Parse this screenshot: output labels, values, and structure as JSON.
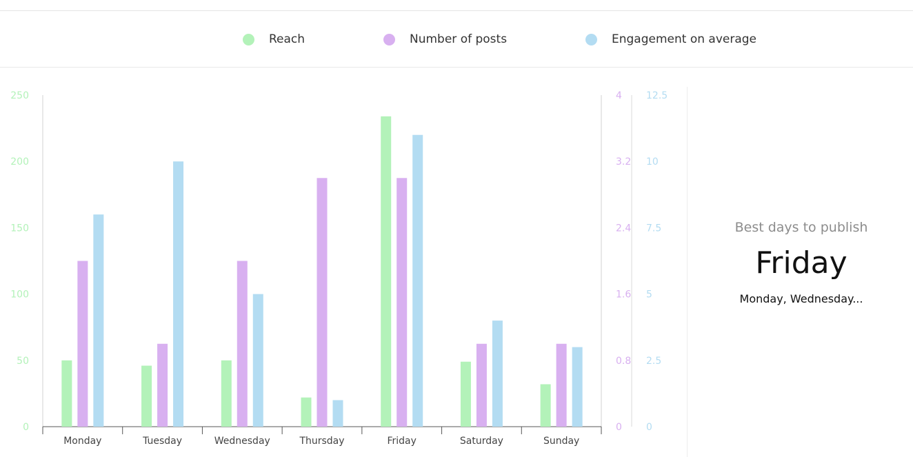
{
  "legend": [
    {
      "id": "reach",
      "label": "Reach",
      "color": "#b3f2b9"
    },
    {
      "id": "posts",
      "label": "Number of posts",
      "color": "#d8b0f0"
    },
    {
      "id": "engagement",
      "label": "Engagement on average",
      "color": "#b3dcf2"
    }
  ],
  "side_panel": {
    "title": "Best days to publish",
    "best_day": "Friday",
    "other_days": "Monday, Wednesday..."
  },
  "chart_data": {
    "type": "bar",
    "categories": [
      "Monday",
      "Tuesday",
      "Wednesday",
      "Thursday",
      "Friday",
      "Saturday",
      "Sunday"
    ],
    "series": [
      {
        "name": "Reach",
        "axis": "left",
        "color": "#b3f2b9",
        "values": [
          50,
          46,
          50,
          22,
          234,
          49,
          32
        ]
      },
      {
        "name": "Number of posts",
        "axis": "right1",
        "color": "#d8b0f0",
        "values": [
          2,
          1,
          2,
          3,
          3,
          1,
          1
        ]
      },
      {
        "name": "Engagement on average",
        "axis": "right2",
        "color": "#b3dcf2",
        "values": [
          8,
          10,
          5,
          1,
          11,
          4,
          3
        ]
      }
    ],
    "axes": {
      "left": {
        "ylim": [
          0,
          250
        ],
        "ticks": [
          "0",
          "50",
          "100",
          "150",
          "200",
          "250"
        ],
        "color": "#b3f2b9"
      },
      "right1": {
        "ylim": [
          0,
          4
        ],
        "ticks": [
          "0",
          "0.8",
          "1.6",
          "2.4",
          "3.2",
          "4"
        ],
        "color": "#d8b0f0"
      },
      "right2": {
        "ylim": [
          0,
          12.5
        ],
        "ticks": [
          "0",
          "2.5",
          "5",
          "7.5",
          "10",
          "12.5"
        ],
        "color": "#b3dcf2"
      }
    },
    "legend_position": "top-center",
    "grid": false
  }
}
